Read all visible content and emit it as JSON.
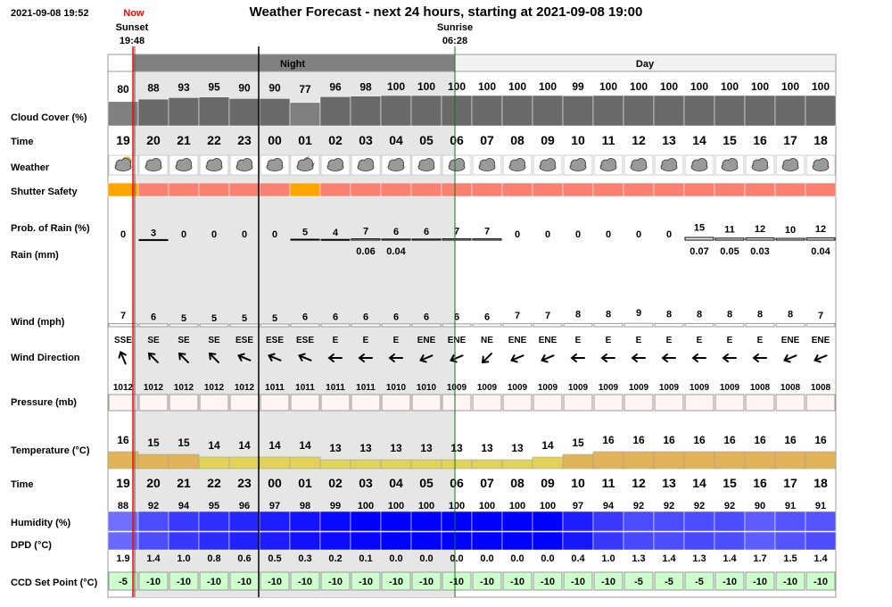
{
  "header": {
    "datetime": "2021-09-08 19:52",
    "now_label": "Now",
    "title": "Weather Forecast - next 24 hours, starting at 2021-09-08 19:00",
    "sunset_label": "Sunset",
    "sunset_time": "19:48",
    "sunrise_label": "Sunrise",
    "sunrise_time": "06:28"
  },
  "bands": {
    "night": "Night",
    "day": "Day"
  },
  "row_labels": {
    "cloud": "Cloud Cover (%)",
    "time": "Time",
    "weather": "Weather",
    "shutter": "Shutter Safety",
    "rain_prob": "Prob. of Rain (%)",
    "rain": "Rain (mm)",
    "wind": "Wind (mph)",
    "wind_dir": "Wind Direction",
    "pressure": "Pressure (mb)",
    "temperature": "Temperature (°C)",
    "time2": "Time",
    "humidity": "Humidity (%)",
    "dpd": "DPD (°C)",
    "ccd": "CCD Set Point (°C)"
  },
  "colors": {
    "cloud": "#696969",
    "cloud_light": "#808080",
    "shutter_unsafe": "#fa8072",
    "shutter_marginal": "#ffa500",
    "night_bg": "#e6e6e6",
    "night_header": "#808080",
    "sunset_line": "#ff0000",
    "day_line": "#008000",
    "temp_cool": "#e1d25a",
    "temp_warm": "#e1b45a",
    "ccd_bg": "#ccffcc"
  },
  "chart_data": {
    "type": "table",
    "hours": [
      "19",
      "20",
      "21",
      "22",
      "23",
      "00",
      "01",
      "02",
      "03",
      "04",
      "05",
      "06",
      "07",
      "08",
      "09",
      "10",
      "11",
      "12",
      "13",
      "14",
      "15",
      "16",
      "17",
      "18"
    ],
    "cloud_cover": [
      80,
      88,
      93,
      95,
      90,
      90,
      77,
      96,
      98,
      100,
      100,
      100,
      100,
      100,
      100,
      99,
      100,
      100,
      100,
      100,
      100,
      100,
      100,
      100
    ],
    "weather_icons": [
      "partly-cloudy-icon",
      "cloud-icon",
      "cloud-icon",
      "cloud-icon",
      "cloud-icon",
      "cloud-icon",
      "partly-cloudy-night-icon",
      "cloud-icon",
      "cloud-icon",
      "cloud-icon",
      "cloud-icon",
      "cloud-icon",
      "cloud-icon",
      "cloud-icon",
      "cloud-icon",
      "cloud-icon",
      "cloud-icon",
      "cloud-icon",
      "cloud-icon",
      "cloud-icon",
      "cloud-icon",
      "cloud-icon",
      "cloud-icon",
      "cloud-icon"
    ],
    "shutter_safety": [
      "marginal",
      "unsafe",
      "unsafe",
      "unsafe",
      "unsafe",
      "unsafe",
      "marginal",
      "unsafe",
      "unsafe",
      "unsafe",
      "unsafe",
      "unsafe",
      "unsafe",
      "unsafe",
      "unsafe",
      "unsafe",
      "unsafe",
      "unsafe",
      "unsafe",
      "unsafe",
      "unsafe",
      "unsafe",
      "unsafe",
      "unsafe"
    ],
    "rain_probability": [
      0,
      3,
      0,
      0,
      0,
      0,
      5,
      4,
      7,
      6,
      6,
      7,
      7,
      0,
      0,
      0,
      0,
      0,
      0,
      15,
      11,
      12,
      10,
      12
    ],
    "rain_mm": [
      "",
      "",
      "",
      "",
      "",
      "",
      "",
      "",
      "0.06",
      "0.04",
      "",
      "",
      "",
      "",
      "",
      "",
      "",
      "",
      "",
      "0.07",
      "0.05",
      "0.03",
      "",
      "0.04"
    ],
    "wind_mph": [
      7,
      6,
      5,
      5,
      5,
      5,
      6,
      6,
      6,
      6,
      6,
      6,
      6,
      7,
      7,
      8,
      8,
      9,
      8,
      8,
      8,
      8,
      8,
      7
    ],
    "wind_direction": [
      "SSE",
      "SE",
      "SE",
      "SE",
      "ESE",
      "ESE",
      "ESE",
      "E",
      "E",
      "E",
      "ENE",
      "ENE",
      "NE",
      "ENE",
      "ENE",
      "E",
      "E",
      "E",
      "E",
      "E",
      "E",
      "E",
      "ENE",
      "ENE"
    ],
    "pressure_mb": [
      1012,
      1012,
      1012,
      1012,
      1012,
      1011,
      1011,
      1011,
      1011,
      1010,
      1010,
      1009,
      1009,
      1009,
      1009,
      1009,
      1009,
      1009,
      1009,
      1009,
      1009,
      1008,
      1008,
      1008
    ],
    "temperature_c": [
      16,
      15,
      15,
      14,
      14,
      14,
      14,
      13,
      13,
      13,
      13,
      13,
      13,
      13,
      14,
      15,
      16,
      16,
      16,
      16,
      16,
      16,
      16,
      16
    ],
    "humidity_pct": [
      88,
      92,
      94,
      95,
      96,
      97,
      98,
      99,
      100,
      100,
      100,
      100,
      100,
      100,
      100,
      97,
      94,
      92,
      92,
      92,
      92,
      90,
      91,
      91
    ],
    "dpd_c": [
      "1.9",
      "1.4",
      "1.0",
      "0.8",
      "0.6",
      "0.5",
      "0.3",
      "0.2",
      "0.1",
      "0.0",
      "0.0",
      "0.0",
      "0.0",
      "0.0",
      "0.0",
      "0.4",
      "1.0",
      "1.3",
      "1.4",
      "1.3",
      "1.4",
      "1.7",
      "1.5",
      "1.4"
    ],
    "ccd_set_point_c": [
      -5,
      -10,
      -10,
      -10,
      -10,
      -10,
      -10,
      -10,
      -10,
      -10,
      -10,
      -10,
      -10,
      -10,
      -10,
      -10,
      -10,
      -5,
      -5,
      -5,
      -10,
      -10,
      -10,
      -10
    ]
  }
}
